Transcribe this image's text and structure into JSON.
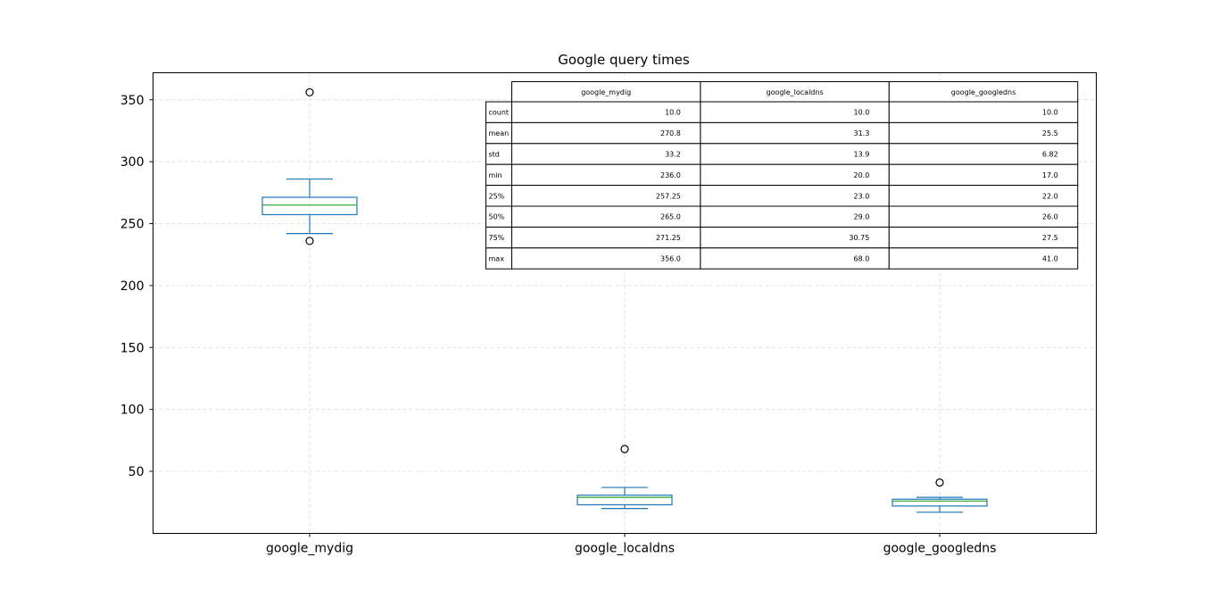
{
  "chart_data": {
    "type": "box",
    "title": "Google query times",
    "xlabel": "",
    "ylabel": "",
    "categories": [
      "google_mydig",
      "google_localdns",
      "google_googledns"
    ],
    "ylim": [
      0,
      372
    ],
    "y_ticks": [
      50,
      100,
      150,
      200,
      250,
      300,
      350
    ],
    "grid": true,
    "boxes": [
      {
        "name": "google_mydig",
        "whisker_low": 242,
        "q1": 257.25,
        "median": 265,
        "q3": 271.25,
        "whisker_high": 286,
        "outliers": [
          356,
          236
        ]
      },
      {
        "name": "google_localdns",
        "whisker_low": 20,
        "q1": 23,
        "median": 29,
        "q3": 30.75,
        "whisker_high": 37,
        "outliers": [
          68
        ]
      },
      {
        "name": "google_googledns",
        "whisker_low": 17,
        "q1": 22,
        "median": 26,
        "q3": 27.5,
        "whisker_high": 29,
        "outliers": [
          41
        ]
      }
    ],
    "colors": {
      "box": "#1f77b4",
      "median": "#2ca02c",
      "outlier": "#000000",
      "grid": "#e0e0e0"
    },
    "stats_table": {
      "columns": [
        "google_mydig",
        "google_localdns",
        "google_googledns"
      ],
      "rows": [
        {
          "label": "count",
          "values": [
            "10.0",
            "10.0",
            "10.0"
          ]
        },
        {
          "label": "mean",
          "values": [
            "270.8",
            "31.3",
            "25.5"
          ]
        },
        {
          "label": "std",
          "values": [
            "33.2",
            "13.9",
            "6.82"
          ]
        },
        {
          "label": "min",
          "values": [
            "236.0",
            "20.0",
            "17.0"
          ]
        },
        {
          "label": "25%",
          "values": [
            "257.25",
            "23.0",
            "22.0"
          ]
        },
        {
          "label": "50%",
          "values": [
            "265.0",
            "29.0",
            "26.0"
          ]
        },
        {
          "label": "75%",
          "values": [
            "271.25",
            "30.75",
            "27.5"
          ]
        },
        {
          "label": "max",
          "values": [
            "356.0",
            "68.0",
            "41.0"
          ]
        }
      ]
    }
  }
}
